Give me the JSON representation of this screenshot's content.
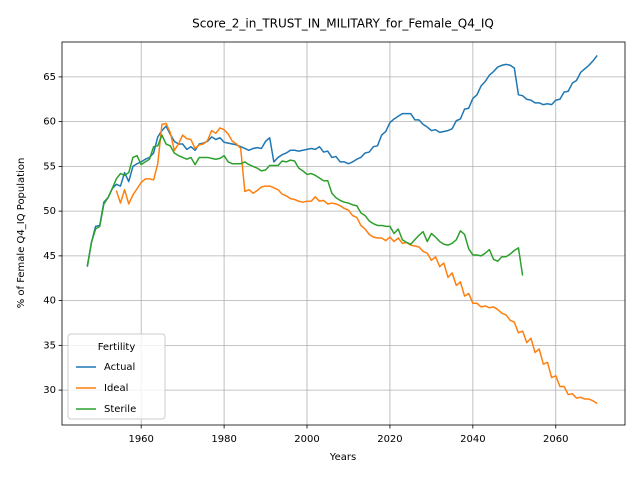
{
  "chart_data": {
    "type": "line",
    "title": "Score_2_in_TRUST_IN_MILITARY_for_Female_Q4_IQ",
    "xlabel": "Years",
    "ylabel": "% of Female Q4_IQ Population",
    "legend_title": "Fertility",
    "legend": "lower left",
    "grid": true,
    "xlim": [
      1940.9,
      2076.7
    ],
    "xticks": [
      1960,
      1980,
      2000,
      2020,
      2040,
      2060
    ],
    "ylim": [
      26.1,
      68.9
    ],
    "yticks": [
      30,
      35,
      40,
      45,
      50,
      55,
      60,
      65
    ],
    "x": [
      1947,
      1948,
      1949,
      1950,
      1951,
      1952,
      1953,
      1954,
      1955,
      1956,
      1957,
      1958,
      1959,
      1960,
      1961,
      1962,
      1963,
      1964,
      1965,
      1966,
      1967,
      1968,
      1969,
      1970,
      1971,
      1972,
      1973,
      1974,
      1975,
      1976,
      1977,
      1978,
      1979,
      1980,
      1981,
      1982,
      1983,
      1984,
      1985,
      1986,
      1987,
      1988,
      1989,
      1990,
      1991,
      1992,
      1993,
      1994,
      1995,
      1996,
      1997,
      1998,
      1999,
      2000,
      2001,
      2002,
      2003,
      2004,
      2005,
      2006,
      2007,
      2008,
      2009,
      2010,
      2011,
      2012,
      2013,
      2014,
      2015,
      2016,
      2017,
      2018,
      2019,
      2020,
      2021,
      2022,
      2023,
      2024,
      2025,
      2026,
      2027,
      2028,
      2029,
      2030,
      2031,
      2032,
      2033,
      2034,
      2035,
      2036,
      2037,
      2038,
      2039,
      2040,
      2041,
      2042,
      2043,
      2044,
      2045,
      2046,
      2047,
      2048,
      2049,
      2050,
      2051,
      2052,
      2053,
      2054,
      2055,
      2056,
      2057,
      2058,
      2059,
      2060,
      2061,
      2062,
      2063,
      2064,
      2065,
      2066,
      2067,
      2068,
      2069,
      2070
    ],
    "series": [
      {
        "name": "Actual",
        "color": "#1f77b4",
        "values": [
          43.8,
          46.5,
          48.3,
          48.4,
          51.0,
          51.5,
          52.5,
          53.0,
          52.8,
          54.3,
          53.3,
          55.0,
          55.3,
          55.5,
          55.8,
          56.0,
          56.5,
          58.3,
          59.0,
          59.5,
          58.6,
          57.8,
          57.5,
          57.5,
          56.9,
          57.2,
          56.8,
          57.5,
          57.6,
          57.8,
          58.3,
          58.0,
          58.2,
          57.7,
          57.6,
          57.5,
          57.4,
          57.2,
          57.0,
          56.8,
          57.0,
          57.1,
          57.0,
          57.8,
          58.2,
          55.5,
          56.0,
          56.3,
          56.5,
          56.8,
          56.8,
          56.7,
          56.8,
          56.9,
          57.0,
          56.9,
          57.2,
          56.6,
          56.7,
          56.0,
          56.1,
          55.5,
          55.5,
          55.3,
          55.5,
          55.8,
          56.0,
          56.5,
          56.6,
          57.2,
          57.3,
          58.5,
          58.9,
          59.9,
          60.3,
          60.6,
          60.9,
          60.9,
          60.9,
          60.2,
          60.2,
          59.7,
          59.4,
          59.0,
          59.1,
          58.8,
          58.9,
          59.0,
          59.2,
          60.1,
          60.3,
          61.4,
          61.5,
          62.6,
          63.0,
          64.0,
          64.5,
          65.2,
          65.6,
          66.1,
          66.3,
          66.4,
          66.3,
          66.0,
          63.0,
          62.9,
          62.5,
          62.4,
          62.1,
          62.1,
          61.9,
          62.0,
          61.9,
          62.4,
          62.5,
          63.3,
          63.4,
          64.3,
          64.6,
          65.5,
          65.9,
          66.3,
          66.8,
          67.4
        ]
      },
      {
        "name": "Ideal",
        "color": "#ff7f0e",
        "values": [
          null,
          null,
          null,
          null,
          null,
          null,
          null,
          52.3,
          50.9,
          52.4,
          50.8,
          51.8,
          52.5,
          53.2,
          53.6,
          53.6,
          53.5,
          55.3,
          59.7,
          59.8,
          58.8,
          56.8,
          57.5,
          58.5,
          58.1,
          58.0,
          57.0,
          57.4,
          57.5,
          57.9,
          59.0,
          58.7,
          59.3,
          59.1,
          58.6,
          57.8,
          57.5,
          57.0,
          52.2,
          52.4,
          52.0,
          52.3,
          52.7,
          52.8,
          52.8,
          52.6,
          52.4,
          51.9,
          51.7,
          51.4,
          51.3,
          51.1,
          51.0,
          51.1,
          51.1,
          51.6,
          51.1,
          51.2,
          50.8,
          50.9,
          50.8,
          50.6,
          50.3,
          50.1,
          49.5,
          49.3,
          48.4,
          48.0,
          47.4,
          47.1,
          47.0,
          47.0,
          46.7,
          47.1,
          46.6,
          47.0,
          46.4,
          46.5,
          46.2,
          46.1,
          46.0,
          45.5,
          45.3,
          44.5,
          44.9,
          43.8,
          44.2,
          42.6,
          43.1,
          41.7,
          42.1,
          40.5,
          40.8,
          39.7,
          39.7,
          39.3,
          39.4,
          39.2,
          39.3,
          39.0,
          38.6,
          38.4,
          37.8,
          37.6,
          36.4,
          36.6,
          35.3,
          35.8,
          34.2,
          34.6,
          32.9,
          33.1,
          31.4,
          31.6,
          30.4,
          30.4,
          29.5,
          29.6,
          29.1,
          29.2,
          29.0,
          29.0,
          28.8,
          28.5
        ]
      },
      {
        "name": "Sterile",
        "color": "#2ca02c",
        "values": [
          43.8,
          46.5,
          48.0,
          48.3,
          50.8,
          51.5,
          52.5,
          53.6,
          54.2,
          54.0,
          54.3,
          56.0,
          56.2,
          55.2,
          55.5,
          55.8,
          57.2,
          57.3,
          58.5,
          57.5,
          57.3,
          56.5,
          56.2,
          56.0,
          55.8,
          56.0,
          55.2,
          56.0,
          56.0,
          56.0,
          55.9,
          55.8,
          55.9,
          56.2,
          55.5,
          55.3,
          55.3,
          55.3,
          55.5,
          55.2,
          55.0,
          54.8,
          54.5,
          54.6,
          55.1,
          55.1,
          55.1,
          55.6,
          55.5,
          55.7,
          55.6,
          54.8,
          54.5,
          54.1,
          54.2,
          54.0,
          53.7,
          53.4,
          53.4,
          52.0,
          51.5,
          51.2,
          51.0,
          50.9,
          50.7,
          50.6,
          49.8,
          49.5,
          48.9,
          48.6,
          48.4,
          48.4,
          48.3,
          48.3,
          47.5,
          48.0,
          46.8,
          46.5,
          46.3,
          46.8,
          47.3,
          47.7,
          46.6,
          47.5,
          47.1,
          46.6,
          46.3,
          46.2,
          46.4,
          46.8,
          47.8,
          47.4,
          45.8,
          45.1,
          45.1,
          45.0,
          45.3,
          45.7,
          44.6,
          44.4,
          44.9,
          44.9,
          45.2,
          45.6,
          45.9,
          42.8,
          null,
          null,
          null,
          null,
          null,
          null,
          null,
          null,
          null,
          null,
          null,
          null,
          null,
          null,
          null,
          null,
          null,
          null
        ]
      }
    ]
  }
}
